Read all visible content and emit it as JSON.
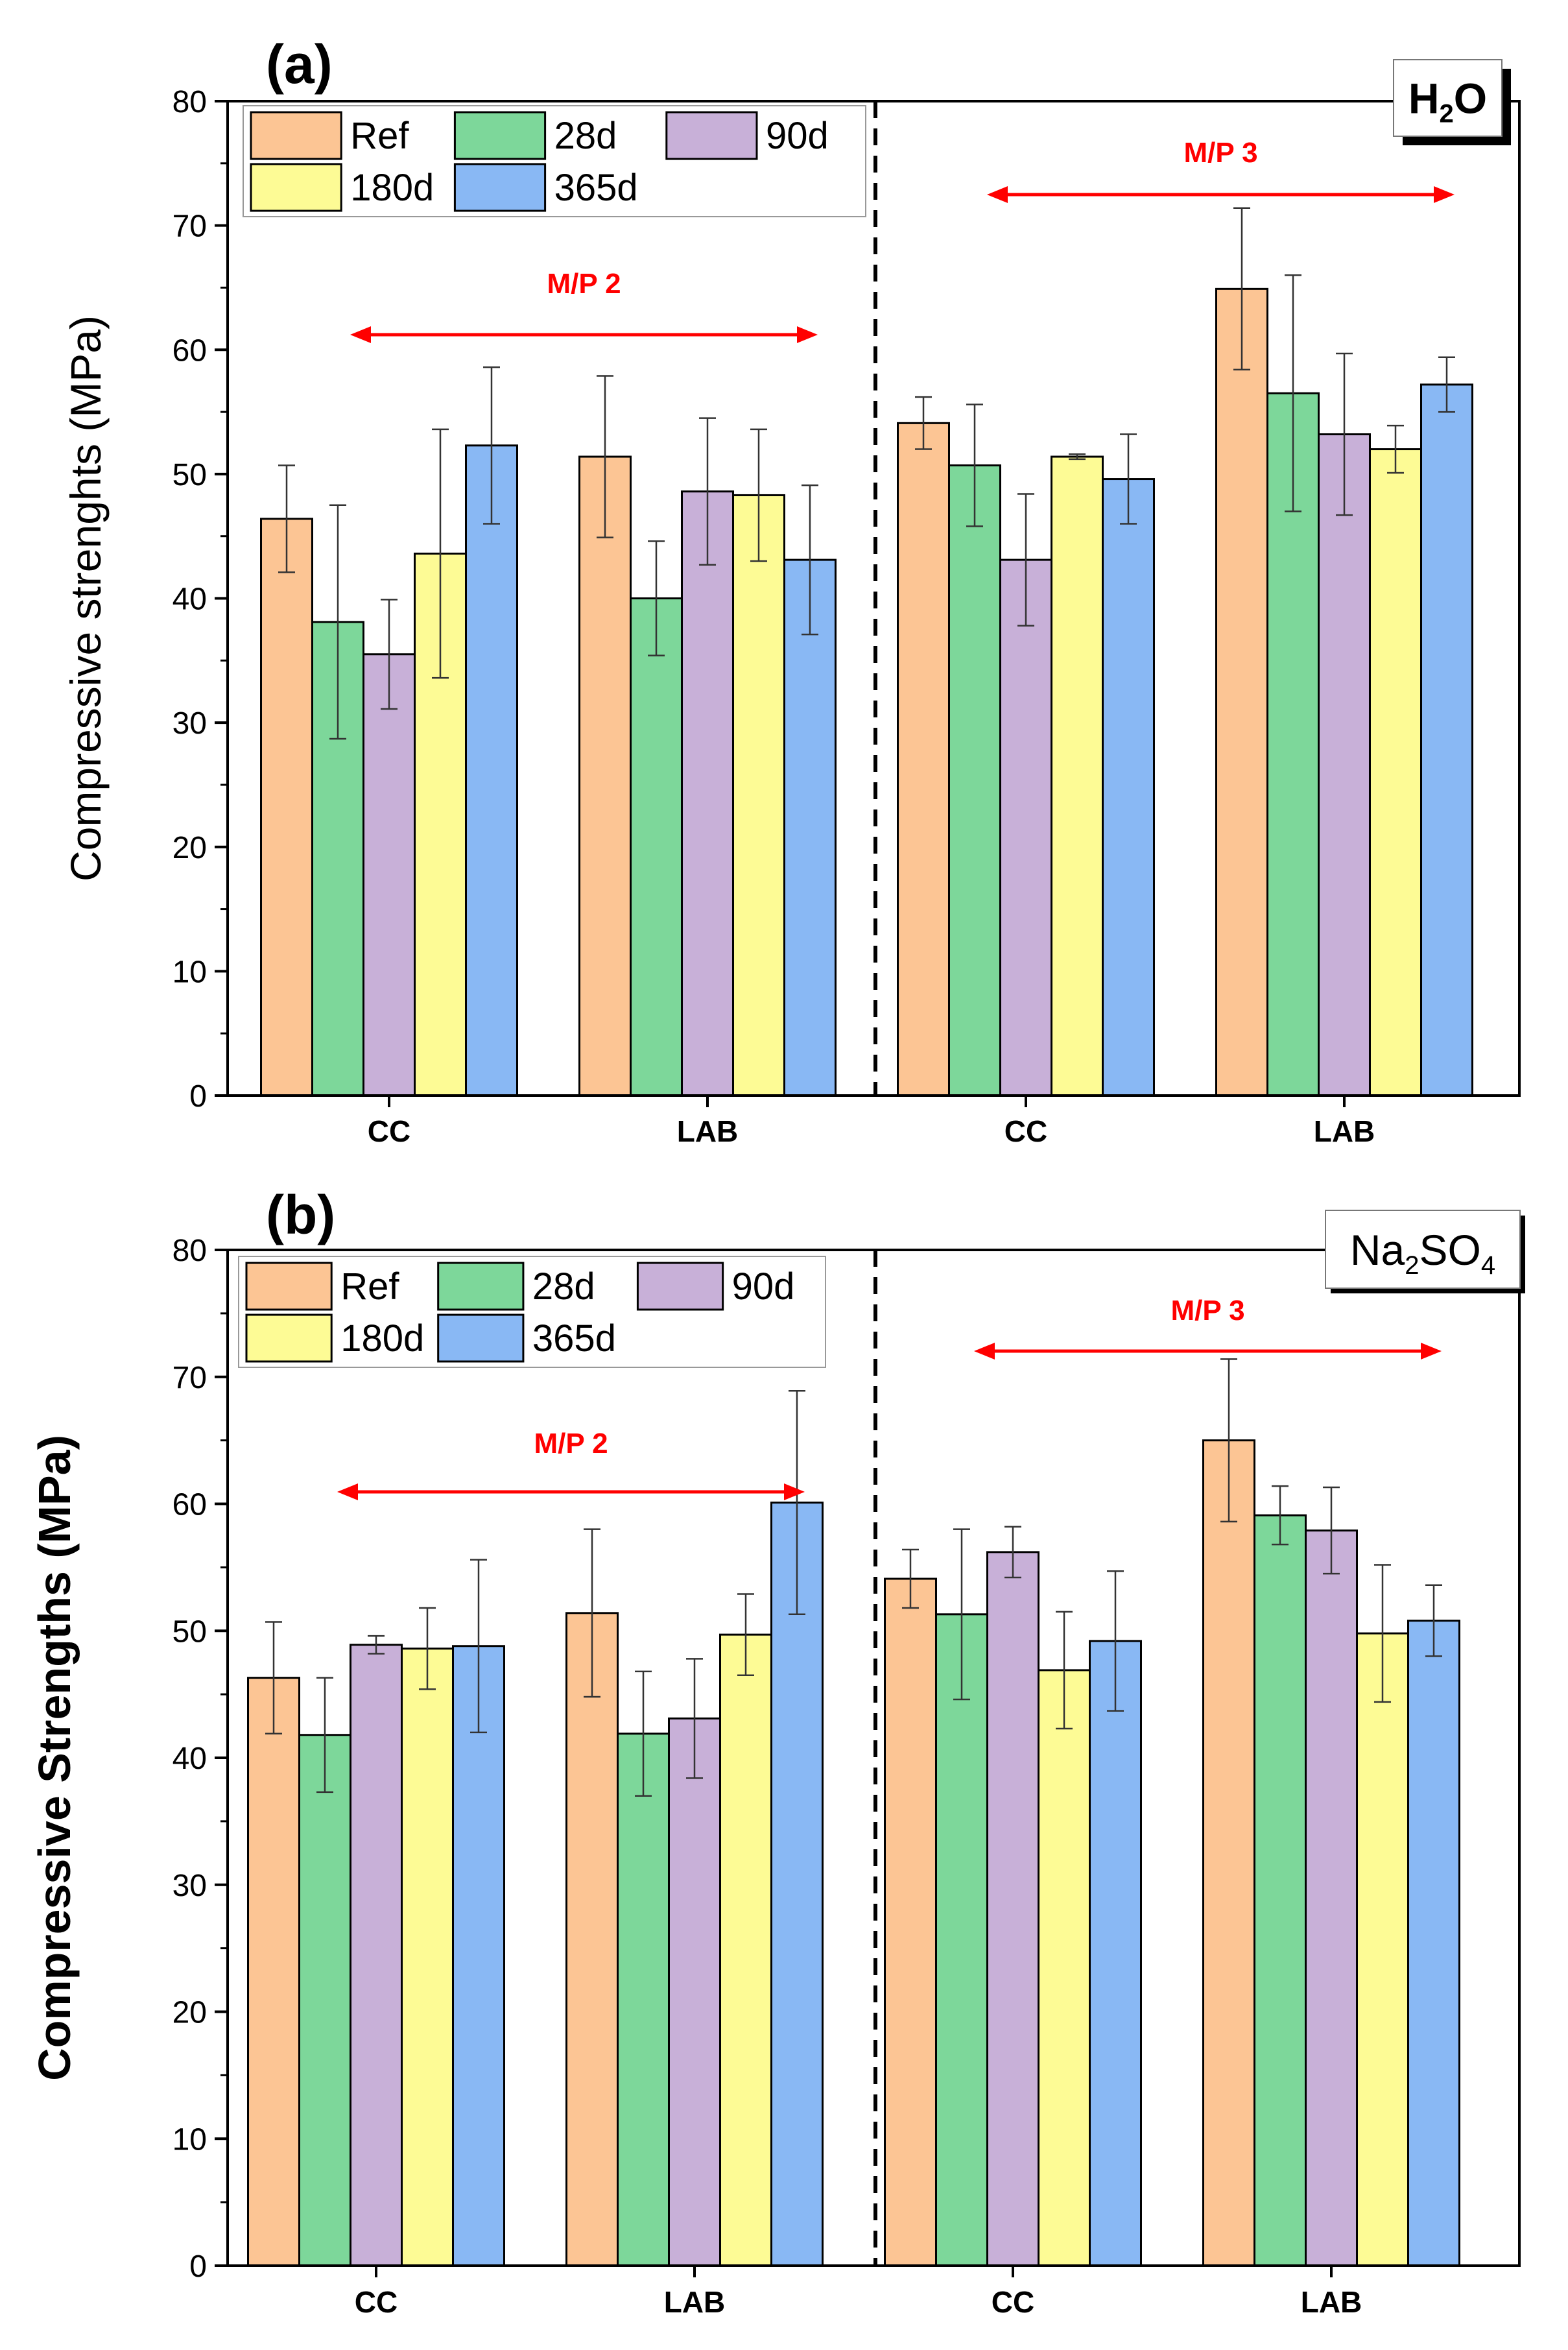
{
  "series_style": [
    {
      "name": "Ref",
      "color": "#fcc594"
    },
    {
      "name": "28d",
      "color": "#7dd79a"
    },
    {
      "name": "90d",
      "color": "#c8b0d8"
    },
    {
      "name": "180d",
      "color": "#fdfb95"
    },
    {
      "name": "365d",
      "color": "#89b8f4"
    }
  ],
  "chart_data": [
    {
      "type": "bar",
      "panel_label": "(a)",
      "solvent_label": "H2O",
      "ylabel": "Compressive strenghts (MPa)",
      "xlabel": "",
      "ylim": [
        0,
        80
      ],
      "yticks": [
        0,
        10,
        20,
        30,
        40,
        50,
        60,
        70,
        80
      ],
      "categories": [
        "CC",
        "LAB",
        "CC",
        "LAB"
      ],
      "groups": [
        {
          "label": "M/P 2",
          "categories": [
            0,
            1
          ]
        },
        {
          "label": "M/P 3",
          "categories": [
            2,
            3
          ]
        }
      ],
      "legend_position": "top-left",
      "series": [
        {
          "name": "Ref",
          "values": [
            46.4,
            51.4,
            54.1,
            64.9
          ],
          "errors": [
            4.3,
            6.5,
            2.1,
            6.5
          ]
        },
        {
          "name": "28d",
          "values": [
            38.1,
            40.0,
            50.7,
            56.5
          ],
          "errors": [
            9.4,
            4.6,
            4.9,
            9.5
          ]
        },
        {
          "name": "90d",
          "values": [
            35.5,
            48.6,
            43.1,
            53.2
          ],
          "errors": [
            4.4,
            5.9,
            5.3,
            6.5
          ]
        },
        {
          "name": "180d",
          "values": [
            43.6,
            48.3,
            51.4,
            52.0
          ],
          "errors": [
            10.0,
            5.3,
            0.2,
            1.9
          ]
        },
        {
          "name": "365d",
          "values": [
            52.3,
            43.1,
            49.6,
            57.2
          ],
          "errors": [
            6.3,
            6.0,
            3.6,
            2.2
          ]
        }
      ]
    },
    {
      "type": "bar",
      "panel_label": "(b)",
      "solvent_label": "Na2SO4",
      "ylabel": "Compressive Strengths  (MPa)",
      "xlabel": "",
      "ylim": [
        0,
        80
      ],
      "yticks": [
        0,
        10,
        20,
        30,
        40,
        50,
        60,
        70,
        80
      ],
      "categories": [
        "CC",
        "LAB",
        "CC",
        "LAB"
      ],
      "groups": [
        {
          "label": "M/P 2",
          "categories": [
            0,
            1
          ]
        },
        {
          "label": "M/P 3",
          "categories": [
            2,
            3
          ]
        }
      ],
      "legend_position": "top-left",
      "series": [
        {
          "name": "Ref",
          "values": [
            46.3,
            51.4,
            54.1,
            65.0
          ],
          "errors": [
            4.4,
            6.6,
            2.3,
            6.4
          ]
        },
        {
          "name": "28d",
          "values": [
            41.8,
            41.9,
            51.3,
            59.1
          ],
          "errors": [
            4.5,
            4.9,
            6.7,
            2.3
          ]
        },
        {
          "name": "90d",
          "values": [
            48.9,
            43.1,
            56.2,
            57.9
          ],
          "errors": [
            0.7,
            4.7,
            2.0,
            3.4
          ]
        },
        {
          "name": "180d",
          "values": [
            48.6,
            49.7,
            46.9,
            49.8
          ],
          "errors": [
            3.2,
            3.2,
            4.6,
            5.4
          ]
        },
        {
          "name": "365d",
          "values": [
            48.8,
            60.1,
            49.2,
            50.8
          ],
          "errors": [
            6.8,
            8.8,
            5.5,
            2.8
          ]
        }
      ]
    }
  ]
}
